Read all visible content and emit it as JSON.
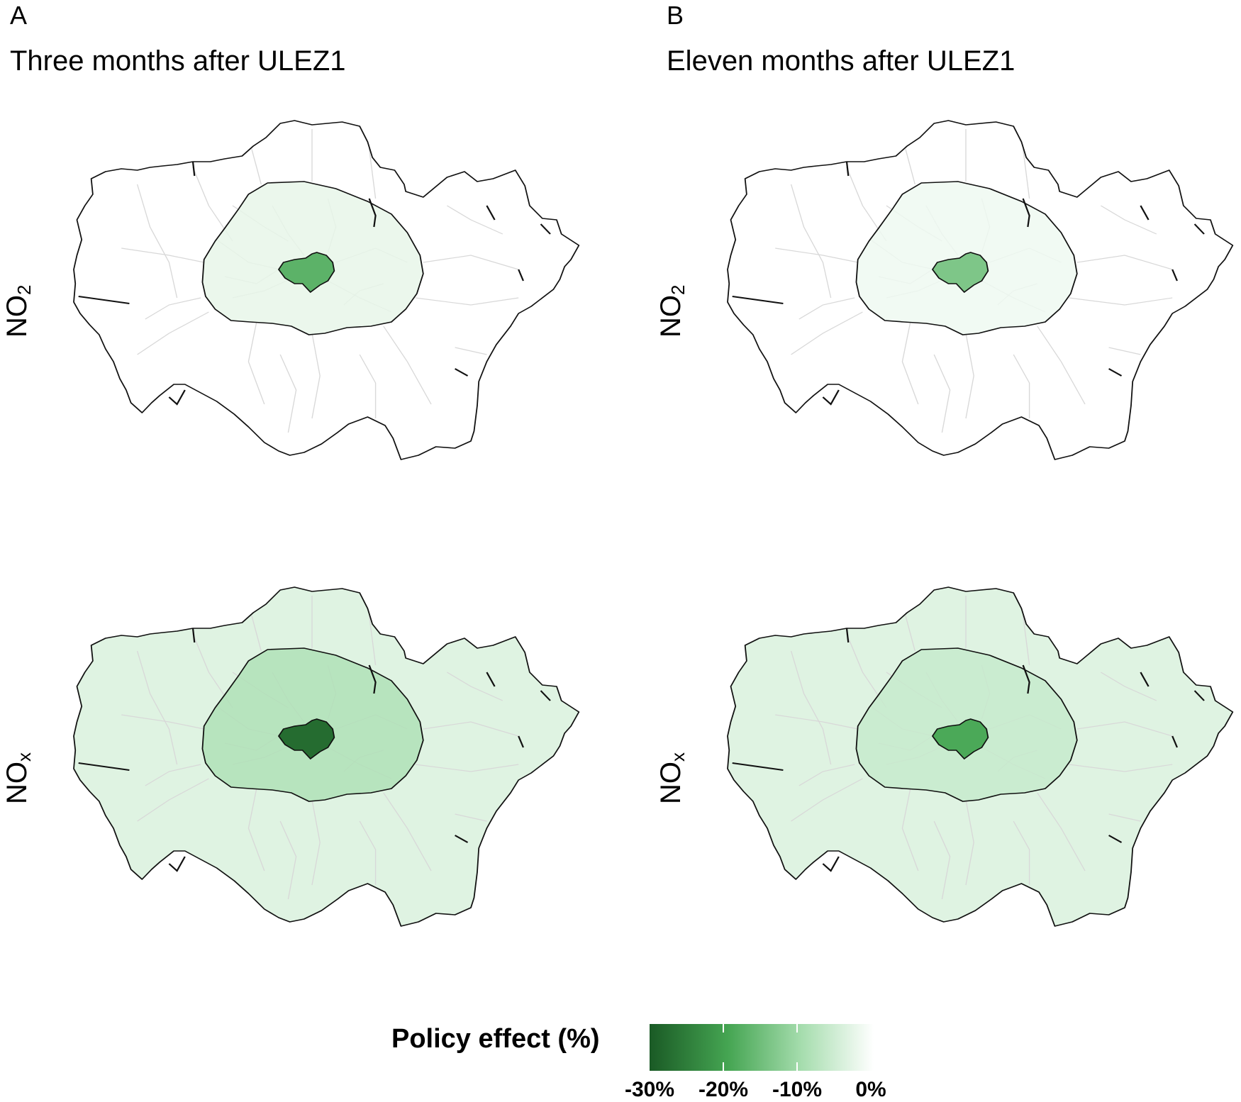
{
  "panels": [
    {
      "letter": "A",
      "title": "Three months after ULEZ1"
    },
    {
      "letter": "B",
      "title": "Eleven months after ULEZ1"
    }
  ],
  "rows": [
    {
      "pollutant": "NO",
      "subscript": "2"
    },
    {
      "pollutant": "NO",
      "subscript": "x"
    }
  ],
  "legend": {
    "title": "Policy effect (%)",
    "ticks": [
      "-30%",
      "-20%",
      "-10%",
      "0%"
    ],
    "min": -35,
    "max": 0,
    "colors": [
      "#1a5a25",
      "#45a552",
      "#a6ddae",
      "#ffffff"
    ]
  },
  "zone_effects": [
    {
      "panel": "A",
      "pollutant": "NO2",
      "central_zone": -20,
      "inner_zone": -3,
      "outer_london": 0
    },
    {
      "panel": "B",
      "pollutant": "NO2",
      "central_zone": -16,
      "inner_zone": -2,
      "outer_london": 0
    },
    {
      "panel": "A",
      "pollutant": "NOx",
      "central_zone": -32,
      "inner_zone": -10,
      "outer_london": -4
    },
    {
      "panel": "B",
      "pollutant": "NOx",
      "central_zone": -22,
      "inner_zone": -7,
      "outer_london": -4
    }
  ],
  "colors": {
    "outline": "#111111",
    "borough_lines": "#d8d8d8"
  }
}
